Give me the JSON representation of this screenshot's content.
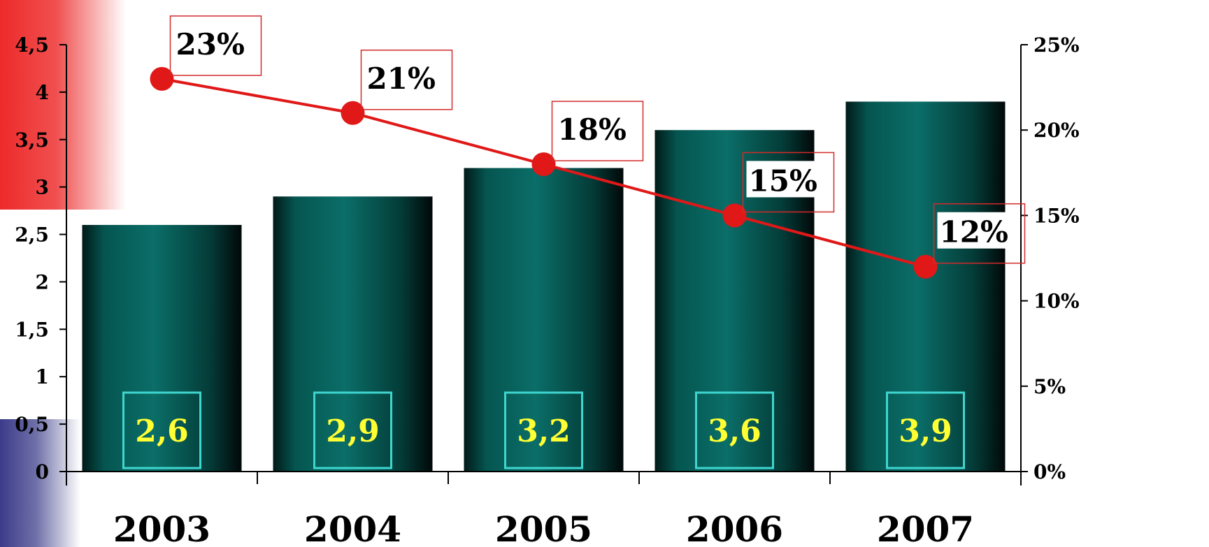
{
  "chart_data": {
    "type": "bar",
    "categories": [
      "2003",
      "2004",
      "2005",
      "2006",
      "2007"
    ],
    "series": [
      {
        "type": "bar",
        "axis": "left",
        "values": [
          2.6,
          2.9,
          3.2,
          3.6,
          3.9
        ],
        "labels": [
          "2,6",
          "2,9",
          "3,2",
          "3,6",
          "3,9"
        ],
        "color": "#0a5a55"
      },
      {
        "type": "line",
        "axis": "right",
        "values": [
          23,
          21,
          18,
          15,
          12
        ],
        "labels": [
          "23%",
          "21%",
          "18%",
          "15%",
          "12%"
        ],
        "color": "#e01818"
      }
    ],
    "ylim": [
      0,
      4.5
    ],
    "y2lim": [
      0,
      25
    ],
    "left_ticks": [
      "0",
      "0,5",
      "1",
      "1,5",
      "2",
      "2,5",
      "3",
      "3,5",
      "4",
      "4,5"
    ],
    "right_ticks": [
      "0%",
      "5%",
      "10%",
      "15%",
      "20%",
      "25%"
    ],
    "grid": false,
    "legend": "none",
    "title": "",
    "xlabel": "",
    "ylabel": ""
  }
}
